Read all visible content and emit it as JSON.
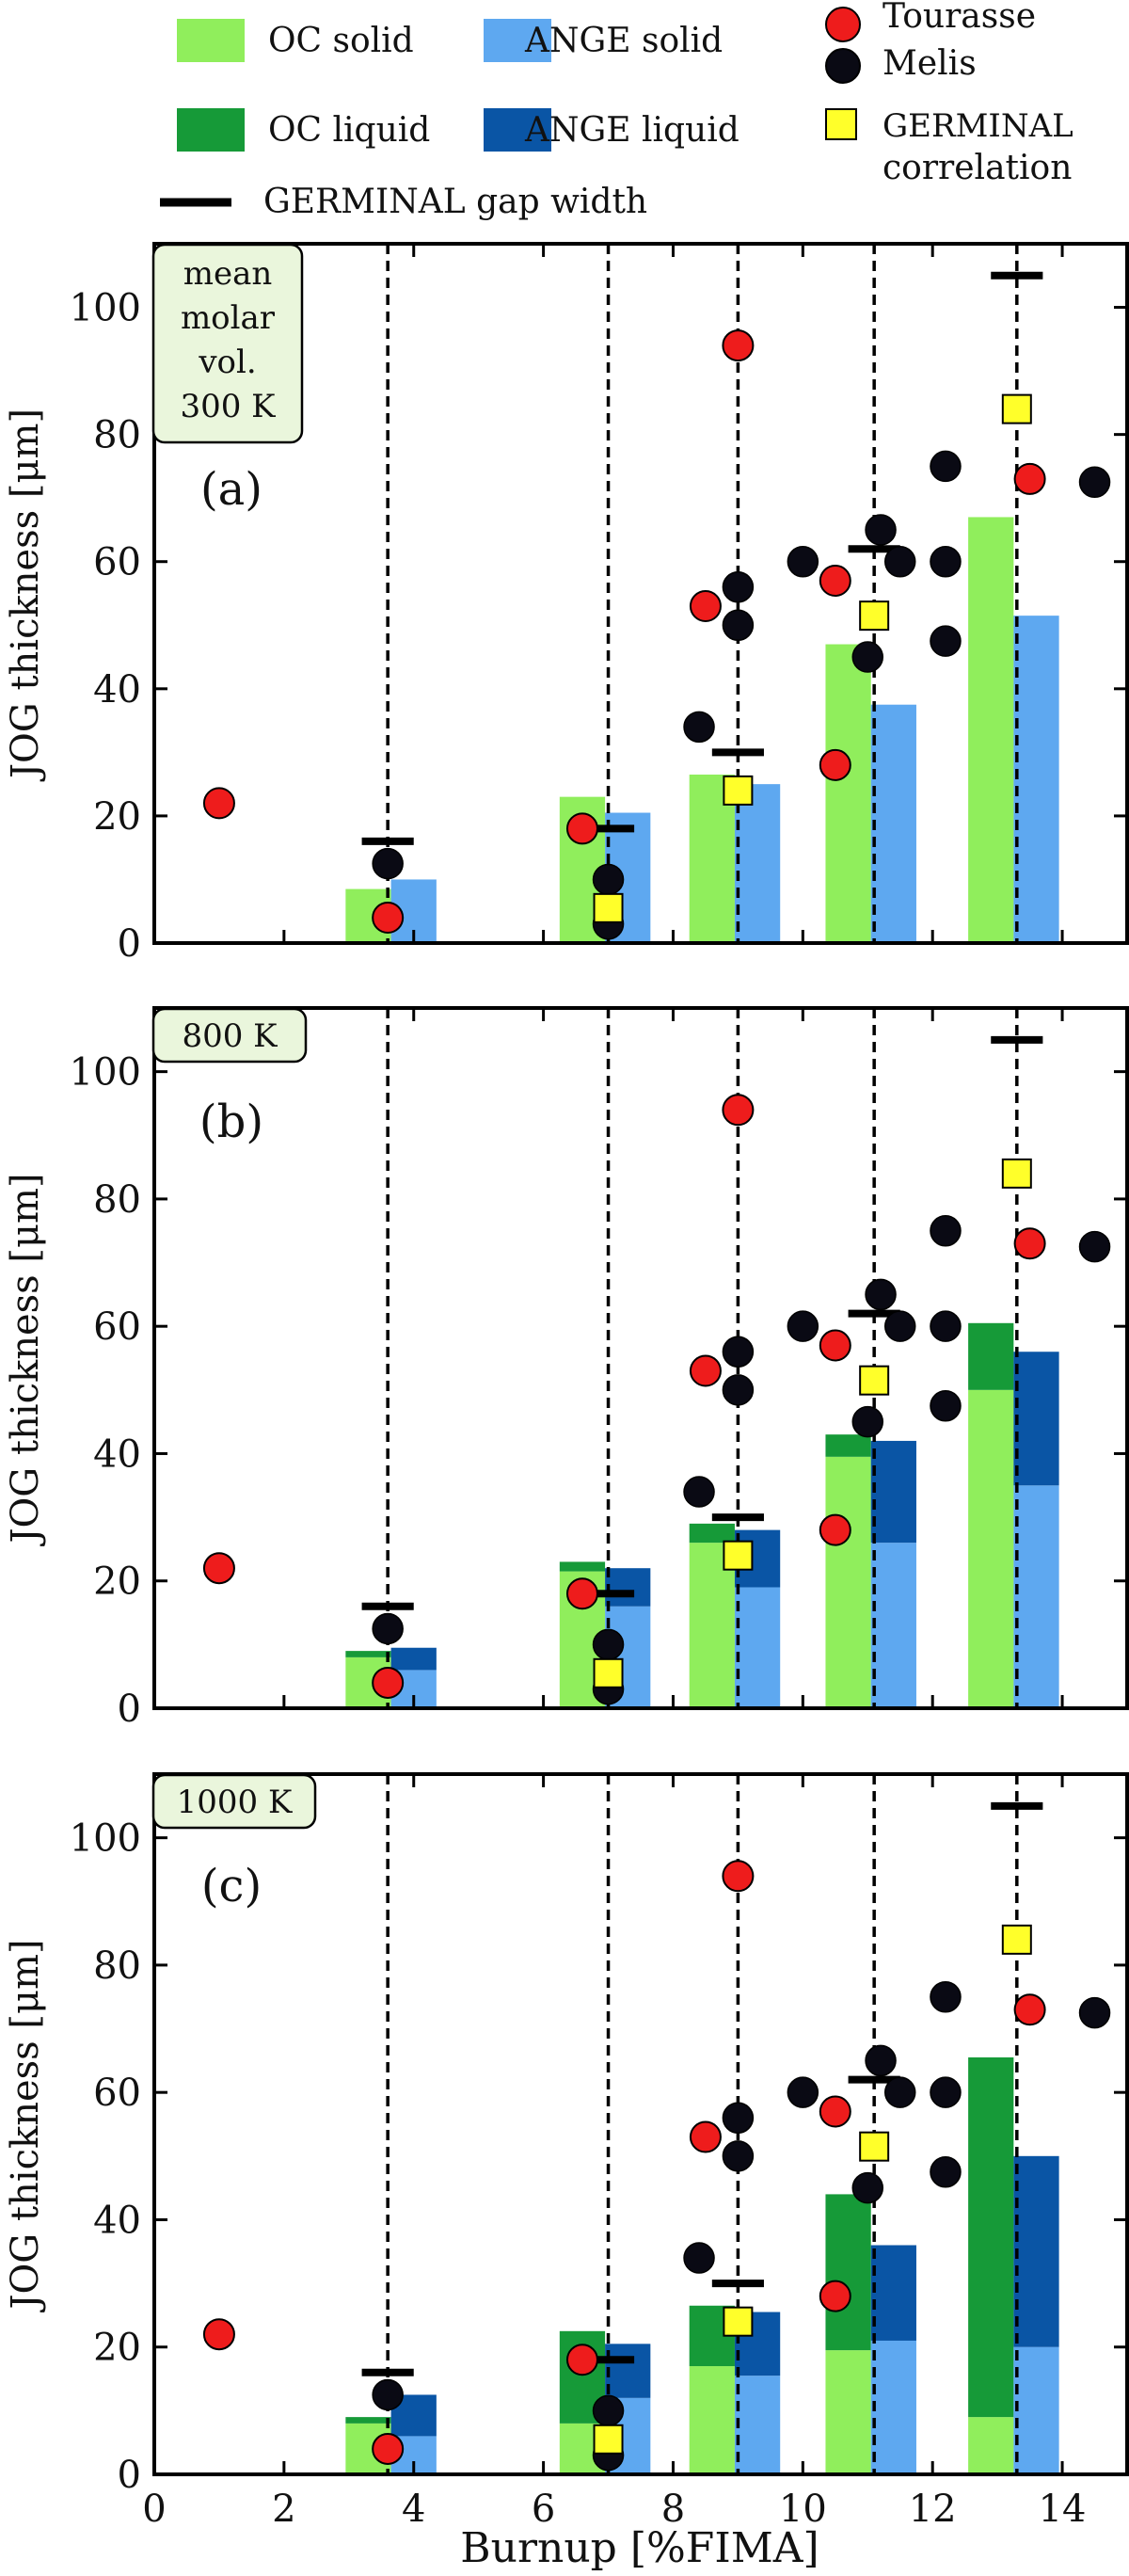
{
  "legend": {
    "oc_solid": "OC solid",
    "ange_solid": "ANGE solid",
    "oc_liquid": "OC liquid",
    "ange_liquid": "ANGE liquid",
    "tourasse": "Tourasse",
    "melis": "Melis",
    "germinal_corr_1": "GERMINAL",
    "germinal_corr_2": "correlation",
    "gap": "GERMINAL gap width"
  },
  "colors": {
    "oc_solid": "#90ee5c",
    "ange_solid": "#5ea8f0",
    "oc_liquid": "#169a38",
    "ange_liquid": "#0a55a5",
    "tourasse": "#ee1c1c",
    "melis": "#0a0a14",
    "germinal": "#ffff2a"
  },
  "chart_data": [
    {
      "type": "bar",
      "panel_label": "(a)",
      "condition_box": [
        "mean",
        "molar",
        "vol.",
        "300 K"
      ],
      "ylabel": "JOG thickness [μm]",
      "xlabel": "Burnup [%FIMA]",
      "xlim": [
        0,
        15
      ],
      "ylim": [
        0,
        110
      ],
      "yticks": [
        0,
        20,
        40,
        60,
        80,
        100
      ],
      "xticks": [
        0,
        2,
        4,
        6,
        8,
        10,
        12,
        14
      ],
      "burnup_lines": [
        3.6,
        7.0,
        9.0,
        11.1,
        13.3
      ],
      "oc_bars": [
        {
          "x": 3.3,
          "solid": 8.5,
          "liquid": 0
        },
        {
          "x": 6.6,
          "solid": 23,
          "liquid": 0
        },
        {
          "x": 8.6,
          "solid": 26.5,
          "liquid": 0
        },
        {
          "x": 10.7,
          "solid": 47,
          "liquid": 0
        },
        {
          "x": 12.9,
          "solid": 67,
          "liquid": 0
        }
      ],
      "ange_bars": [
        {
          "x": 4.0,
          "solid": 10,
          "liquid": 0
        },
        {
          "x": 7.3,
          "solid": 20.5,
          "liquid": 0
        },
        {
          "x": 9.3,
          "solid": 25,
          "liquid": 0
        },
        {
          "x": 11.4,
          "solid": 37.5,
          "liquid": 0
        },
        {
          "x": 13.6,
          "solid": 51.5,
          "liquid": 0
        }
      ],
      "germinal_gap": [
        {
          "x": 3.6,
          "y": 16
        },
        {
          "x": 7.0,
          "y": 18
        },
        {
          "x": 9.0,
          "y": 30
        },
        {
          "x": 11.1,
          "y": 62
        },
        {
          "x": 13.3,
          "y": 105
        }
      ],
      "germinal_correlation": [
        {
          "x": 7.0,
          "y": 5.5
        },
        {
          "x": 9.0,
          "y": 24
        },
        {
          "x": 11.1,
          "y": 51.5
        },
        {
          "x": 13.3,
          "y": 84
        }
      ],
      "tourasse": [
        {
          "x": 1.0,
          "y": 22
        },
        {
          "x": 3.6,
          "y": 4
        },
        {
          "x": 6.6,
          "y": 18
        },
        {
          "x": 8.5,
          "y": 53
        },
        {
          "x": 9.0,
          "y": 94
        },
        {
          "x": 10.5,
          "y": 57
        },
        {
          "x": 10.5,
          "y": 28
        },
        {
          "x": 13.5,
          "y": 73
        }
      ],
      "melis": [
        {
          "x": 3.6,
          "y": 12.5
        },
        {
          "x": 7.0,
          "y": 10
        },
        {
          "x": 7.0,
          "y": 3
        },
        {
          "x": 8.4,
          "y": 34
        },
        {
          "x": 9.0,
          "y": 56
        },
        {
          "x": 9.0,
          "y": 50
        },
        {
          "x": 10.0,
          "y": 60
        },
        {
          "x": 11.0,
          "y": 45
        },
        {
          "x": 11.2,
          "y": 65
        },
        {
          "x": 11.5,
          "y": 60
        },
        {
          "x": 12.2,
          "y": 75
        },
        {
          "x": 12.2,
          "y": 60
        },
        {
          "x": 12.2,
          "y": 47.5
        },
        {
          "x": 14.5,
          "y": 72.5
        }
      ]
    },
    {
      "type": "bar",
      "panel_label": "(b)",
      "condition_box": [
        "800 K"
      ],
      "ylabel": "JOG thickness [μm]",
      "xlabel": "Burnup [%FIMA]",
      "xlim": [
        0,
        15
      ],
      "ylim": [
        0,
        110
      ],
      "yticks": [
        0,
        20,
        40,
        60,
        80,
        100
      ],
      "xticks": [
        0,
        2,
        4,
        6,
        8,
        10,
        12,
        14
      ],
      "burnup_lines": [
        3.6,
        7.0,
        9.0,
        11.1,
        13.3
      ],
      "oc_bars": [
        {
          "x": 3.3,
          "solid": 8,
          "liquid": 1
        },
        {
          "x": 6.6,
          "solid": 21.5,
          "liquid": 1.5
        },
        {
          "x": 8.6,
          "solid": 26,
          "liquid": 3
        },
        {
          "x": 10.7,
          "solid": 39.5,
          "liquid": 3.5
        },
        {
          "x": 12.9,
          "solid": 50,
          "liquid": 10.5
        }
      ],
      "ange_bars": [
        {
          "x": 4.0,
          "solid": 6,
          "liquid": 3.5
        },
        {
          "x": 7.3,
          "solid": 16,
          "liquid": 6
        },
        {
          "x": 9.3,
          "solid": 19,
          "liquid": 9
        },
        {
          "x": 11.4,
          "solid": 26,
          "liquid": 16
        },
        {
          "x": 13.6,
          "solid": 35,
          "liquid": 21
        }
      ],
      "germinal_gap": [
        {
          "x": 3.6,
          "y": 16
        },
        {
          "x": 7.0,
          "y": 18
        },
        {
          "x": 9.0,
          "y": 30
        },
        {
          "x": 11.1,
          "y": 62
        },
        {
          "x": 13.3,
          "y": 105
        }
      ],
      "germinal_correlation": [
        {
          "x": 7.0,
          "y": 5.5
        },
        {
          "x": 9.0,
          "y": 24
        },
        {
          "x": 11.1,
          "y": 51.5
        },
        {
          "x": 13.3,
          "y": 84
        }
      ],
      "tourasse": [
        {
          "x": 1.0,
          "y": 22
        },
        {
          "x": 3.6,
          "y": 4
        },
        {
          "x": 6.6,
          "y": 18
        },
        {
          "x": 8.5,
          "y": 53
        },
        {
          "x": 9.0,
          "y": 94
        },
        {
          "x": 10.5,
          "y": 57
        },
        {
          "x": 10.5,
          "y": 28
        },
        {
          "x": 13.5,
          "y": 73
        }
      ],
      "melis": [
        {
          "x": 3.6,
          "y": 12.5
        },
        {
          "x": 7.0,
          "y": 10
        },
        {
          "x": 7.0,
          "y": 3
        },
        {
          "x": 8.4,
          "y": 34
        },
        {
          "x": 9.0,
          "y": 56
        },
        {
          "x": 9.0,
          "y": 50
        },
        {
          "x": 10.0,
          "y": 60
        },
        {
          "x": 11.0,
          "y": 45
        },
        {
          "x": 11.2,
          "y": 65
        },
        {
          "x": 11.5,
          "y": 60
        },
        {
          "x": 12.2,
          "y": 75
        },
        {
          "x": 12.2,
          "y": 60
        },
        {
          "x": 12.2,
          "y": 47.5
        },
        {
          "x": 14.5,
          "y": 72.5
        }
      ]
    },
    {
      "type": "bar",
      "panel_label": "(c)",
      "condition_box": [
        "1000 K"
      ],
      "ylabel": "JOG thickness [μm]",
      "xlabel": "Burnup [%FIMA]",
      "xlim": [
        0,
        15
      ],
      "ylim": [
        0,
        110
      ],
      "yticks": [
        0,
        20,
        40,
        60,
        80,
        100
      ],
      "xticks": [
        0,
        2,
        4,
        6,
        8,
        10,
        12,
        14
      ],
      "burnup_lines": [
        3.6,
        7.0,
        9.0,
        11.1,
        13.3
      ],
      "oc_bars": [
        {
          "x": 3.3,
          "solid": 8,
          "liquid": 1
        },
        {
          "x": 6.6,
          "solid": 8,
          "liquid": 14.5
        },
        {
          "x": 8.6,
          "solid": 17,
          "liquid": 9.5
        },
        {
          "x": 10.7,
          "solid": 19.5,
          "liquid": 24.5
        },
        {
          "x": 12.9,
          "solid": 9,
          "liquid": 56.5
        }
      ],
      "ange_bars": [
        {
          "x": 4.0,
          "solid": 6,
          "liquid": 6.5
        },
        {
          "x": 7.3,
          "solid": 12,
          "liquid": 8.5
        },
        {
          "x": 9.3,
          "solid": 15.5,
          "liquid": 10
        },
        {
          "x": 11.4,
          "solid": 21,
          "liquid": 15
        },
        {
          "x": 13.6,
          "solid": 20,
          "liquid": 30
        }
      ],
      "germinal_gap": [
        {
          "x": 3.6,
          "y": 16
        },
        {
          "x": 7.0,
          "y": 18
        },
        {
          "x": 9.0,
          "y": 30
        },
        {
          "x": 11.1,
          "y": 62
        },
        {
          "x": 13.3,
          "y": 105
        }
      ],
      "germinal_correlation": [
        {
          "x": 7.0,
          "y": 5.5
        },
        {
          "x": 9.0,
          "y": 24
        },
        {
          "x": 11.1,
          "y": 51.5
        },
        {
          "x": 13.3,
          "y": 84
        }
      ],
      "tourasse": [
        {
          "x": 1.0,
          "y": 22
        },
        {
          "x": 3.6,
          "y": 4
        },
        {
          "x": 6.6,
          "y": 18
        },
        {
          "x": 8.5,
          "y": 53
        },
        {
          "x": 9.0,
          "y": 94
        },
        {
          "x": 10.5,
          "y": 57
        },
        {
          "x": 10.5,
          "y": 28
        },
        {
          "x": 13.5,
          "y": 73
        }
      ],
      "melis": [
        {
          "x": 3.6,
          "y": 12.5
        },
        {
          "x": 7.0,
          "y": 10
        },
        {
          "x": 7.0,
          "y": 3
        },
        {
          "x": 8.4,
          "y": 34
        },
        {
          "x": 9.0,
          "y": 56
        },
        {
          "x": 9.0,
          "y": 50
        },
        {
          "x": 10.0,
          "y": 60
        },
        {
          "x": 11.0,
          "y": 45
        },
        {
          "x": 11.2,
          "y": 65
        },
        {
          "x": 11.5,
          "y": 60
        },
        {
          "x": 12.2,
          "y": 75
        },
        {
          "x": 12.2,
          "y": 60
        },
        {
          "x": 12.2,
          "y": 47.5
        },
        {
          "x": 14.5,
          "y": 72.5
        }
      ]
    }
  ]
}
